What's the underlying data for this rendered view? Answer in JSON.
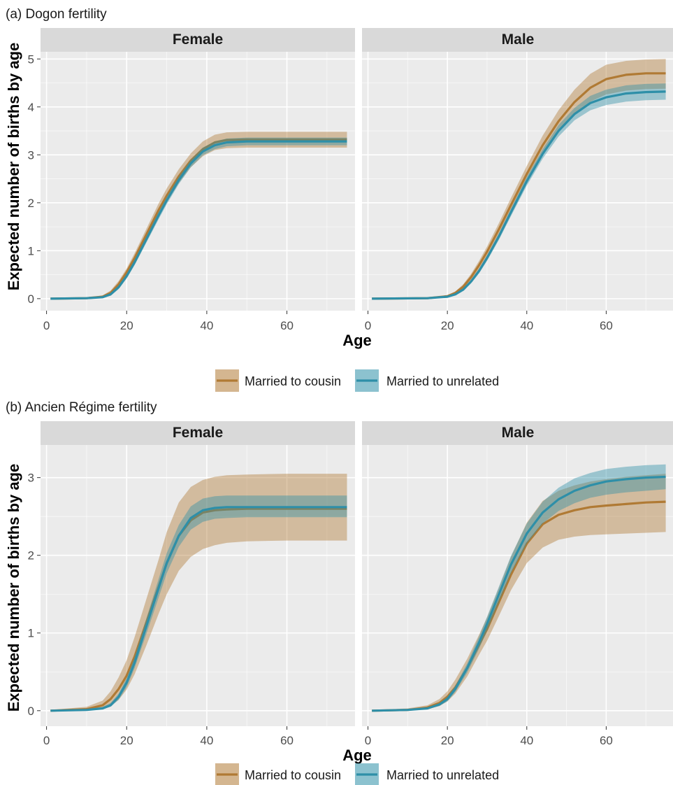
{
  "figure": {
    "ylabel": "Expected number of births by age",
    "xlabel": "Age"
  },
  "legend": {
    "items": [
      "Married to cousin",
      "Married to unrelated"
    ]
  },
  "colors": {
    "cousin": "#b07a34",
    "unrelated": "#2e8fa8",
    "panel_bg": "#ebebeb",
    "strip_bg": "#d9d9d9",
    "grid": "#ffffff"
  },
  "chart_data": [
    {
      "type": "area",
      "title": "(a) Dogon fertility",
      "xlabel": "Age",
      "ylabel": "Expected number of births by age",
      "xlim": [
        -1.5,
        77
      ],
      "ylim": [
        -0.25,
        5.15
      ],
      "xticks": [
        0,
        20,
        40,
        60
      ],
      "yticks": [
        0,
        1,
        2,
        3,
        4,
        5
      ],
      "facets": [
        {
          "label": "Female",
          "series": [
            {
              "name": "Married to cousin",
              "x": [
                1,
                10,
                14,
                16,
                18,
                20,
                22,
                25,
                28,
                30,
                33,
                36,
                39,
                42,
                45,
                50,
                60,
                75
              ],
              "y": [
                0,
                0.01,
                0.04,
                0.12,
                0.3,
                0.55,
                0.85,
                1.35,
                1.85,
                2.15,
                2.55,
                2.88,
                3.12,
                3.26,
                3.31,
                3.32,
                3.32,
                3.32
              ],
              "lower": [
                0,
                0,
                0.02,
                0.08,
                0.24,
                0.48,
                0.76,
                1.23,
                1.71,
                2.01,
                2.41,
                2.74,
                2.97,
                3.1,
                3.14,
                3.15,
                3.15,
                3.15
              ],
              "upper": [
                0.01,
                0.02,
                0.07,
                0.17,
                0.37,
                0.63,
                0.95,
                1.47,
                1.99,
                2.3,
                2.7,
                3.03,
                3.28,
                3.42,
                3.47,
                3.48,
                3.48,
                3.48
              ]
            },
            {
              "name": "Married to unrelated",
              "x": [
                1,
                10,
                14,
                16,
                18,
                20,
                22,
                25,
                28,
                30,
                33,
                36,
                39,
                42,
                45,
                50,
                60,
                75
              ],
              "y": [
                0,
                0.01,
                0.03,
                0.09,
                0.24,
                0.47,
                0.76,
                1.25,
                1.74,
                2.05,
                2.47,
                2.82,
                3.07,
                3.2,
                3.26,
                3.28,
                3.28,
                3.28
              ],
              "lower": [
                0,
                0,
                0.02,
                0.06,
                0.2,
                0.42,
                0.7,
                1.18,
                1.66,
                1.97,
                2.39,
                2.74,
                2.99,
                3.12,
                3.18,
                3.2,
                3.2,
                3.2
              ],
              "upper": [
                0.01,
                0.02,
                0.05,
                0.12,
                0.28,
                0.52,
                0.82,
                1.32,
                1.82,
                2.13,
                2.55,
                2.9,
                3.15,
                3.28,
                3.34,
                3.36,
                3.36,
                3.36
              ]
            }
          ]
        },
        {
          "label": "Male",
          "series": [
            {
              "name": "Married to cousin",
              "x": [
                1,
                15,
                20,
                22,
                24,
                26,
                28,
                30,
                33,
                36,
                40,
                44,
                48,
                52,
                56,
                60,
                65,
                70,
                75
              ],
              "y": [
                0,
                0.01,
                0.05,
                0.12,
                0.25,
                0.45,
                0.7,
                0.98,
                1.45,
                1.95,
                2.6,
                3.2,
                3.7,
                4.1,
                4.4,
                4.58,
                4.67,
                4.7,
                4.7
              ],
              "lower": [
                0,
                0,
                0.03,
                0.09,
                0.2,
                0.38,
                0.61,
                0.87,
                1.32,
                1.8,
                2.43,
                3.0,
                3.47,
                3.84,
                4.11,
                4.26,
                4.34,
                4.37,
                4.38
              ],
              "upper": [
                0.01,
                0.02,
                0.07,
                0.15,
                0.3,
                0.52,
                0.79,
                1.09,
                1.58,
                2.1,
                2.77,
                3.4,
                3.93,
                4.36,
                4.69,
                4.88,
                4.96,
                4.99,
                5.0
              ]
            },
            {
              "name": "Married to unrelated",
              "x": [
                1,
                15,
                20,
                22,
                24,
                26,
                28,
                30,
                33,
                36,
                40,
                44,
                48,
                52,
                56,
                60,
                65,
                70,
                75
              ],
              "y": [
                0,
                0.01,
                0.04,
                0.09,
                0.19,
                0.36,
                0.58,
                0.85,
                1.3,
                1.8,
                2.45,
                3.02,
                3.5,
                3.85,
                4.08,
                4.2,
                4.28,
                4.31,
                4.32
              ],
              "lower": [
                0,
                0,
                0.03,
                0.07,
                0.16,
                0.32,
                0.53,
                0.79,
                1.23,
                1.72,
                2.36,
                2.92,
                3.38,
                3.72,
                3.93,
                4.04,
                4.11,
                4.14,
                4.15
              ],
              "upper": [
                0.01,
                0.02,
                0.05,
                0.11,
                0.22,
                0.4,
                0.63,
                0.91,
                1.37,
                1.88,
                2.54,
                3.12,
                3.62,
                3.98,
                4.23,
                4.36,
                4.45,
                4.48,
                4.49
              ]
            }
          ]
        }
      ]
    },
    {
      "type": "area",
      "title": "(b) Ancien Régime fertility",
      "xlabel": "Age",
      "ylabel": "Expected number of births by age",
      "xlim": [
        -1.5,
        77
      ],
      "ylim": [
        -0.2,
        3.42
      ],
      "xticks": [
        0,
        20,
        40,
        60
      ],
      "yticks": [
        0,
        1,
        2,
        3
      ],
      "facets": [
        {
          "label": "Female",
          "series": [
            {
              "name": "Married to cousin",
              "x": [
                1,
                10,
                14,
                16,
                18,
                20,
                22,
                25,
                28,
                30,
                33,
                36,
                39,
                42,
                45,
                50,
                60,
                75
              ],
              "y": [
                0,
                0.02,
                0.07,
                0.15,
                0.28,
                0.45,
                0.7,
                1.15,
                1.6,
                1.9,
                2.25,
                2.45,
                2.55,
                2.58,
                2.59,
                2.6,
                2.6,
                2.6
              ],
              "lower": [
                0,
                0,
                0.02,
                0.06,
                0.14,
                0.27,
                0.47,
                0.85,
                1.25,
                1.5,
                1.8,
                1.98,
                2.08,
                2.13,
                2.16,
                2.18,
                2.19,
                2.19
              ],
              "upper": [
                0.01,
                0.05,
                0.13,
                0.25,
                0.43,
                0.65,
                0.95,
                1.45,
                1.95,
                2.3,
                2.68,
                2.88,
                2.97,
                3.01,
                3.03,
                3.04,
                3.05,
                3.05
              ]
            },
            {
              "name": "Married to unrelated",
              "x": [
                1,
                10,
                14,
                16,
                18,
                20,
                22,
                25,
                28,
                30,
                33,
                36,
                39,
                42,
                45,
                50,
                60,
                75
              ],
              "y": [
                0,
                0.01,
                0.03,
                0.07,
                0.18,
                0.36,
                0.62,
                1.1,
                1.58,
                1.9,
                2.25,
                2.48,
                2.58,
                2.61,
                2.62,
                2.62,
                2.62,
                2.62
              ],
              "lower": [
                0,
                0,
                0.02,
                0.05,
                0.14,
                0.3,
                0.55,
                1.0,
                1.46,
                1.77,
                2.11,
                2.33,
                2.43,
                2.47,
                2.48,
                2.49,
                2.49,
                2.49
              ],
              "upper": [
                0.01,
                0.02,
                0.05,
                0.1,
                0.22,
                0.42,
                0.7,
                1.2,
                1.7,
                2.03,
                2.39,
                2.63,
                2.73,
                2.76,
                2.77,
                2.77,
                2.77,
                2.77
              ]
            }
          ]
        },
        {
          "label": "Male",
          "series": [
            {
              "name": "Married to cousin",
              "x": [
                1,
                10,
                15,
                18,
                20,
                22,
                25,
                28,
                30,
                33,
                36,
                40,
                44,
                48,
                52,
                56,
                60,
                65,
                70,
                75
              ],
              "y": [
                0,
                0.01,
                0.04,
                0.1,
                0.18,
                0.3,
                0.55,
                0.85,
                1.05,
                1.4,
                1.75,
                2.15,
                2.4,
                2.52,
                2.58,
                2.62,
                2.64,
                2.66,
                2.68,
                2.69
              ],
              "lower": [
                0,
                0,
                0.02,
                0.06,
                0.12,
                0.22,
                0.44,
                0.72,
                0.9,
                1.22,
                1.55,
                1.9,
                2.1,
                2.2,
                2.24,
                2.26,
                2.27,
                2.28,
                2.29,
                2.3
              ],
              "upper": [
                0.01,
                0.03,
                0.07,
                0.15,
                0.25,
                0.4,
                0.67,
                0.98,
                1.2,
                1.58,
                1.98,
                2.42,
                2.7,
                2.83,
                2.9,
                2.95,
                2.98,
                3.01,
                3.03,
                3.05
              ]
            },
            {
              "name": "Married to unrelated",
              "x": [
                1,
                10,
                15,
                18,
                20,
                22,
                25,
                28,
                30,
                33,
                36,
                40,
                44,
                48,
                52,
                56,
                60,
                65,
                70,
                75
              ],
              "y": [
                0,
                0.01,
                0.03,
                0.08,
                0.15,
                0.28,
                0.55,
                0.88,
                1.12,
                1.5,
                1.88,
                2.28,
                2.55,
                2.72,
                2.83,
                2.9,
                2.95,
                2.98,
                3.0,
                3.01
              ],
              "lower": [
                0,
                0,
                0.02,
                0.06,
                0.12,
                0.24,
                0.49,
                0.8,
                1.03,
                1.4,
                1.77,
                2.15,
                2.41,
                2.57,
                2.67,
                2.74,
                2.78,
                2.81,
                2.83,
                2.85
              ],
              "upper": [
                0.01,
                0.02,
                0.04,
                0.1,
                0.18,
                0.32,
                0.61,
                0.96,
                1.21,
                1.6,
                1.99,
                2.41,
                2.69,
                2.87,
                2.99,
                3.06,
                3.11,
                3.14,
                3.16,
                3.17
              ]
            }
          ]
        }
      ]
    }
  ]
}
